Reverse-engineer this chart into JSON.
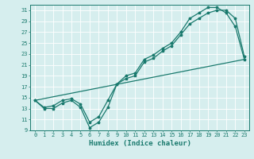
{
  "xlabel": "Humidex (Indice chaleur)",
  "ylabel": "",
  "bg_color": "#d6eeee",
  "grid_color": "#ffffff",
  "line_color": "#1a7a6e",
  "xlim": [
    -0.5,
    23.5
  ],
  "ylim": [
    9,
    32
  ],
  "xticks": [
    0,
    1,
    2,
    3,
    4,
    5,
    6,
    7,
    8,
    9,
    10,
    11,
    12,
    13,
    14,
    15,
    16,
    17,
    18,
    19,
    20,
    21,
    22,
    23
  ],
  "yticks": [
    9,
    11,
    13,
    15,
    17,
    19,
    21,
    23,
    25,
    27,
    29,
    31
  ],
  "series1_x": [
    0,
    1,
    2,
    3,
    4,
    5,
    6,
    7,
    8,
    9,
    10,
    11,
    12,
    13,
    14,
    15,
    16,
    17,
    18,
    19,
    20,
    21,
    22,
    23
  ],
  "series1_y": [
    14.5,
    13.0,
    13.0,
    14.0,
    14.5,
    13.2,
    9.5,
    10.5,
    13.2,
    17.5,
    18.5,
    19.0,
    21.5,
    22.2,
    23.5,
    24.5,
    26.5,
    28.5,
    29.5,
    30.5,
    31.0,
    31.0,
    29.5,
    22.5
  ],
  "series2_x": [
    0,
    1,
    2,
    3,
    4,
    5,
    6,
    7,
    8,
    9,
    10,
    11,
    12,
    13,
    14,
    15,
    16,
    17,
    18,
    19,
    20,
    21,
    22,
    23
  ],
  "series2_y": [
    14.5,
    13.2,
    13.5,
    14.5,
    14.8,
    13.8,
    10.5,
    11.5,
    14.5,
    17.5,
    19.0,
    19.5,
    22.0,
    22.8,
    24.0,
    25.0,
    27.0,
    29.5,
    30.5,
    31.5,
    31.5,
    30.5,
    28.0,
    22.0
  ],
  "series3_x": [
    0,
    23
  ],
  "series3_y": [
    14.5,
    22.0
  ],
  "tick_fontsize": 5,
  "xlabel_fontsize": 6.5,
  "marker_size": 2.5,
  "line_width": 0.9
}
